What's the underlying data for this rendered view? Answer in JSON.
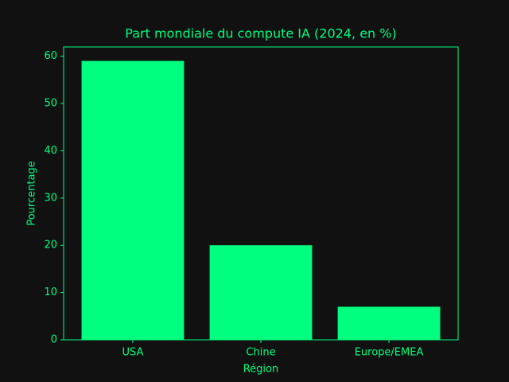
{
  "chart_data": {
    "type": "bar",
    "title": "Part mondiale du compute IA (2024, en %)",
    "x_label": "Région",
    "y_label": "Pourcentage",
    "categories": [
      "USA",
      "Chine",
      "Europe/EMEA"
    ],
    "values": [
      59,
      20,
      7
    ],
    "color": "#00ff7f",
    "ylim": [
      0,
      61.95
    ],
    "yticks": [
      0,
      10,
      20,
      30,
      40,
      50,
      60
    ],
    "grid": false
  }
}
